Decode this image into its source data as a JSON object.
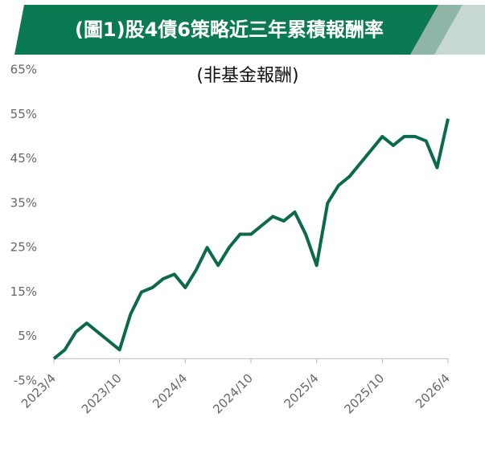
{
  "chart_data": {
    "type": "line",
    "title": "(圖1)股4債6策略近三年累積報酬率",
    "subtitle": "(非基金報酬)",
    "categories": [
      "2023/4",
      null,
      null,
      null,
      null,
      null,
      "2023/10",
      null,
      null,
      null,
      null,
      null,
      "2024/4",
      null,
      null,
      null,
      null,
      null,
      "2024/10",
      null,
      null,
      null,
      null,
      null,
      "2025/4",
      null,
      null,
      null,
      null,
      null,
      "2025/10",
      null,
      null,
      null,
      null,
      null,
      "2026/4"
    ],
    "values": [
      0,
      2,
      6,
      8,
      6,
      4,
      2,
      10,
      15,
      16,
      18,
      19,
      16,
      20,
      25,
      21,
      25,
      28,
      28,
      30,
      32,
      31,
      33,
      28,
      21,
      35,
      39,
      41,
      44,
      47,
      50,
      48,
      50,
      50,
      49,
      43,
      54
    ],
    "color": "#0b6a48",
    "ylim": [
      -5,
      65
    ],
    "yticks": [
      {
        "value": -5,
        "label": "-5%"
      },
      {
        "value": 5,
        "label": "5%"
      },
      {
        "value": 15,
        "label": "15%"
      },
      {
        "value": 25,
        "label": "25%"
      },
      {
        "value": 35,
        "label": "35%"
      },
      {
        "value": 45,
        "label": "45%"
      },
      {
        "value": 55,
        "label": "55%"
      },
      {
        "value": 65,
        "label": "65%"
      }
    ],
    "grid": false
  }
}
